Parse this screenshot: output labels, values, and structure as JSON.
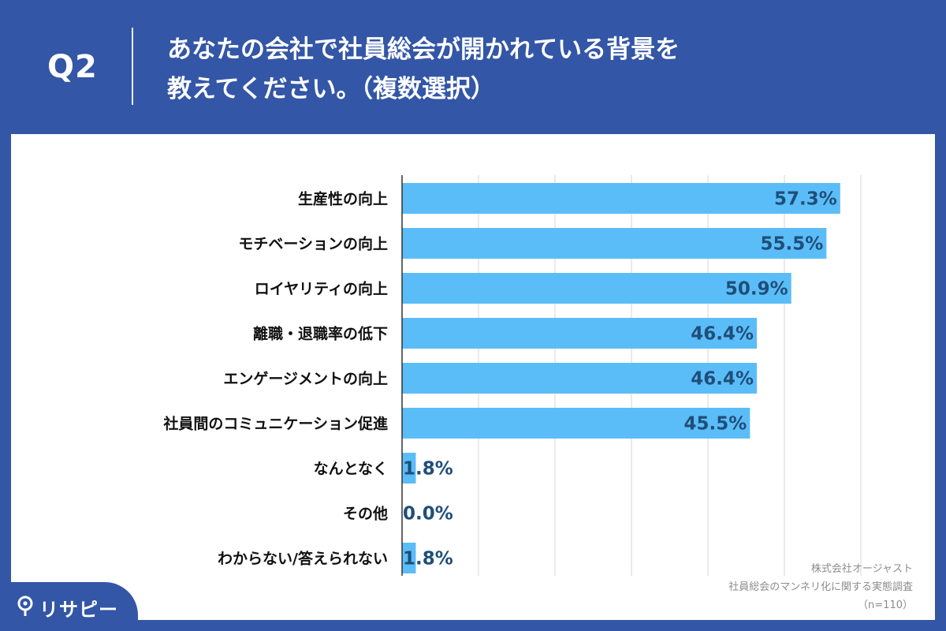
{
  "header": {
    "question_number": "Q2",
    "title_line1": "あなたの会社で社員総会が開かれている背景を",
    "title_line2": "教えてください。（複数選択）"
  },
  "chart_data": {
    "type": "bar",
    "orientation": "horizontal",
    "categories": [
      "生産性の向上",
      "モチベーションの向上",
      "ロイヤリティの向上",
      "離職・退職率の低下",
      "エンゲージメントの向上",
      "社員間のコミュニケーション促進",
      "なんとなく",
      "その他",
      "わからない/答えられない"
    ],
    "values": [
      57.3,
      55.5,
      50.9,
      46.4,
      46.4,
      45.5,
      1.8,
      0.0,
      1.8
    ],
    "value_labels": [
      "57.3%",
      "55.5%",
      "50.9%",
      "46.4%",
      "46.4%",
      "45.5%",
      "1.8%",
      "0.0%",
      "1.8%"
    ],
    "xlim": [
      0,
      60
    ],
    "grid": true,
    "bar_color": "#5bbdf8"
  },
  "source": {
    "line1": "株式会社オージャスト",
    "line2": "社員総会のマンネリ化に関する実態調査",
    "line3": "（n=110）"
  },
  "logo": {
    "text": "リサピー"
  },
  "colors": {
    "background": "#3356a6",
    "panel": "#ffffff",
    "bar": "#5bbdf8",
    "value_text": "#1f4e79",
    "grid": "#d6d6d6"
  }
}
